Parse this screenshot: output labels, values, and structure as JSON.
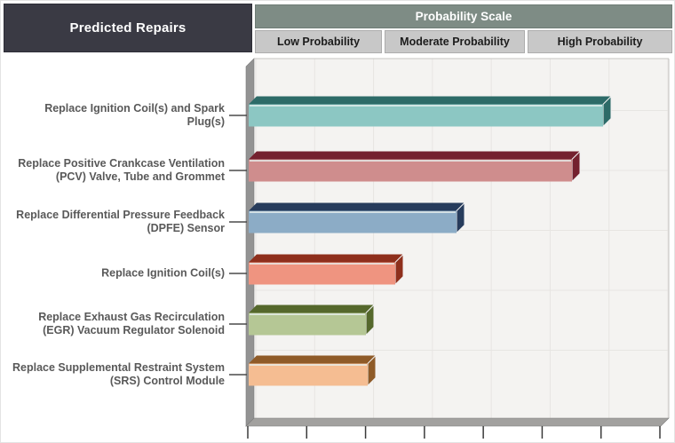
{
  "header": {
    "left_title": "Predicted Repairs",
    "scale_title": "Probability Scale",
    "scale_columns": [
      "Low Probability",
      "Moderate Probability",
      "High Probability"
    ]
  },
  "chart_data": {
    "type": "bar",
    "orientation": "horizontal",
    "style": "3d-horizontal-bars",
    "title": "Probability Scale",
    "categories_title": "Predicted Repairs",
    "categories": [
      "Replace Ignition Coil(s) and Spark Plug(s)",
      "Replace Positive Crankcase Ventilation (PCV) Valve, Tube and Grommet",
      "Replace Differential Pressure Feedback (DPFE) Sensor",
      "Replace Ignition Coil(s)",
      "Replace Exhaust Gas Recirculation (EGR) Vacuum Regulator Solenoid",
      "Replace Supplemental Restraint System (SRS) Control Module"
    ],
    "values_pct_of_scale": [
      86,
      78.5,
      50.5,
      35.5,
      28.5,
      28.8
    ],
    "scale_bands": [
      "Low Probability",
      "Moderate Probability",
      "High Probability"
    ],
    "x_axis": {
      "tick_count": 8,
      "tick_labels_visible": false,
      "range_pct": [
        0,
        100
      ]
    },
    "bar_colors": [
      {
        "front": "#8CC7C3",
        "dark": "#2D6B68"
      },
      {
        "front": "#CF8D8D",
        "dark": "#74212F"
      },
      {
        "front": "#8CACC6",
        "dark": "#273C5C"
      },
      {
        "front": "#EF9480",
        "dark": "#8E2F1C"
      },
      {
        "front": "#B5C795",
        "dark": "#55682C"
      },
      {
        "front": "#F5BD92",
        "dark": "#8F5B28"
      }
    ],
    "grid": true,
    "legend": "none"
  },
  "colors": {
    "category_header_bg": "#3A3A44",
    "scale_header_bg": "#7E8C85",
    "scale_cell_bg": "#C8C8C8",
    "plot_bg": "#F4F3F1",
    "wall": "#939393",
    "floor": "#A2A19F",
    "gridline": "#E7E5E2",
    "label_text": "#595959",
    "tick": "#3A3A3A"
  }
}
